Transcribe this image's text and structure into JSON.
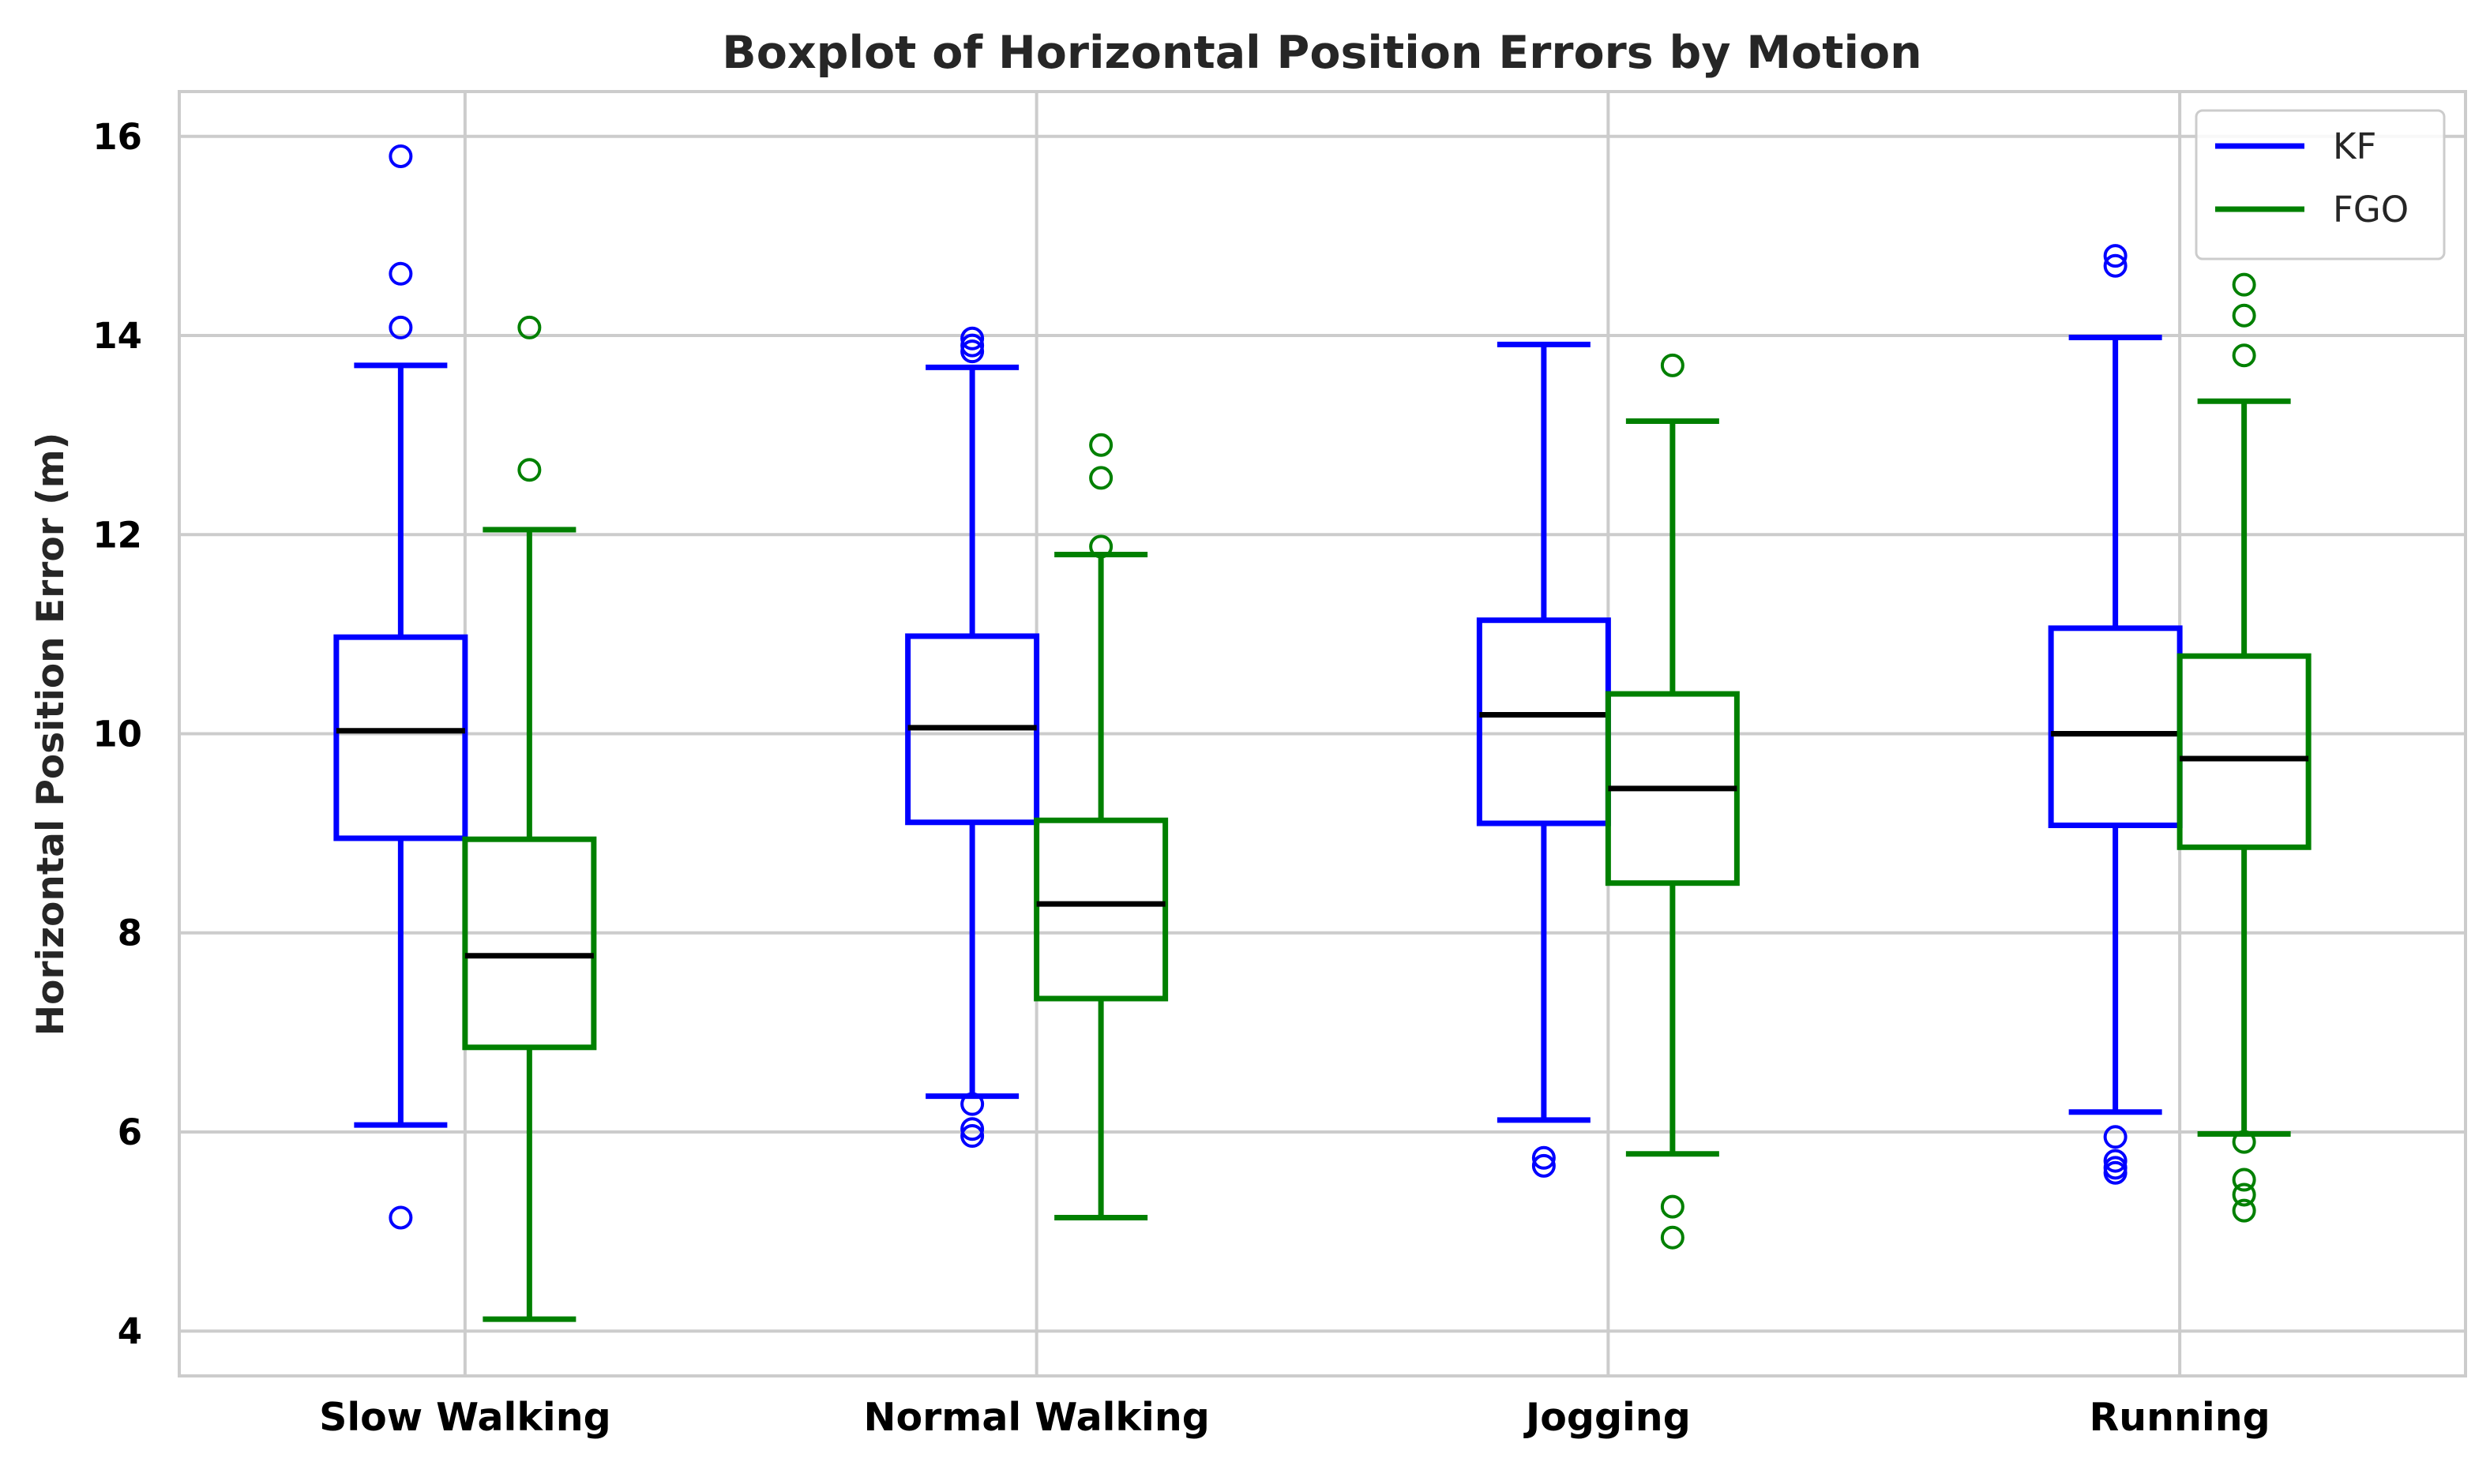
{
  "chart_data": {
    "type": "boxplot",
    "title": "Boxplot of Horizontal Position Errors by Motion",
    "xlabel": "",
    "ylabel": "Horizontal Position Error (m)",
    "ylim": [
      3.55,
      16.45
    ],
    "yticks": [
      4,
      6,
      8,
      10,
      12,
      14,
      16
    ],
    "grid": true,
    "legend_position": "top-right",
    "categories": [
      "Slow Walking",
      "Normal Walking",
      "Jogging",
      "Running"
    ],
    "series": [
      {
        "name": "KF",
        "color": "#0000ff",
        "boxes": [
          {
            "whisker_low": 6.07,
            "q1": 8.95,
            "median": 10.03,
            "q3": 10.97,
            "whisker_high": 13.7,
            "outliers": [
              15.8,
              14.62,
              14.08,
              5.14
            ]
          },
          {
            "whisker_low": 6.36,
            "q1": 9.11,
            "median": 10.06,
            "q3": 10.98,
            "whisker_high": 13.68,
            "outliers": [
              13.97,
              13.9,
              13.84,
              6.28,
              6.03,
              5.96
            ]
          },
          {
            "whisker_low": 6.12,
            "q1": 9.1,
            "median": 10.19,
            "q3": 11.14,
            "whisker_high": 13.91,
            "outliers": [
              5.74,
              5.66
            ]
          },
          {
            "whisker_low": 6.2,
            "q1": 9.08,
            "median": 10.0,
            "q3": 11.06,
            "whisker_high": 13.98,
            "outliers": [
              14.8,
              14.7,
              5.95,
              5.71,
              5.64,
              5.59
            ]
          }
        ]
      },
      {
        "name": "FGO",
        "color": "#008000",
        "boxes": [
          {
            "whisker_low": 4.12,
            "q1": 6.85,
            "median": 7.77,
            "q3": 8.94,
            "whisker_high": 12.05,
            "outliers": [
              14.08,
              12.65
            ]
          },
          {
            "whisker_low": 5.14,
            "q1": 7.34,
            "median": 8.29,
            "q3": 9.13,
            "whisker_high": 11.8,
            "outliers": [
              12.9,
              12.57,
              11.88
            ]
          },
          {
            "whisker_low": 5.78,
            "q1": 8.5,
            "median": 9.45,
            "q3": 10.4,
            "whisker_high": 13.14,
            "outliers": [
              13.7,
              5.25,
              4.94
            ]
          },
          {
            "whisker_low": 5.98,
            "q1": 8.86,
            "median": 9.75,
            "q3": 10.78,
            "whisker_high": 13.34,
            "outliers": [
              14.51,
              14.2,
              13.8,
              5.9,
              5.52,
              5.37,
              5.21
            ]
          }
        ]
      }
    ]
  }
}
